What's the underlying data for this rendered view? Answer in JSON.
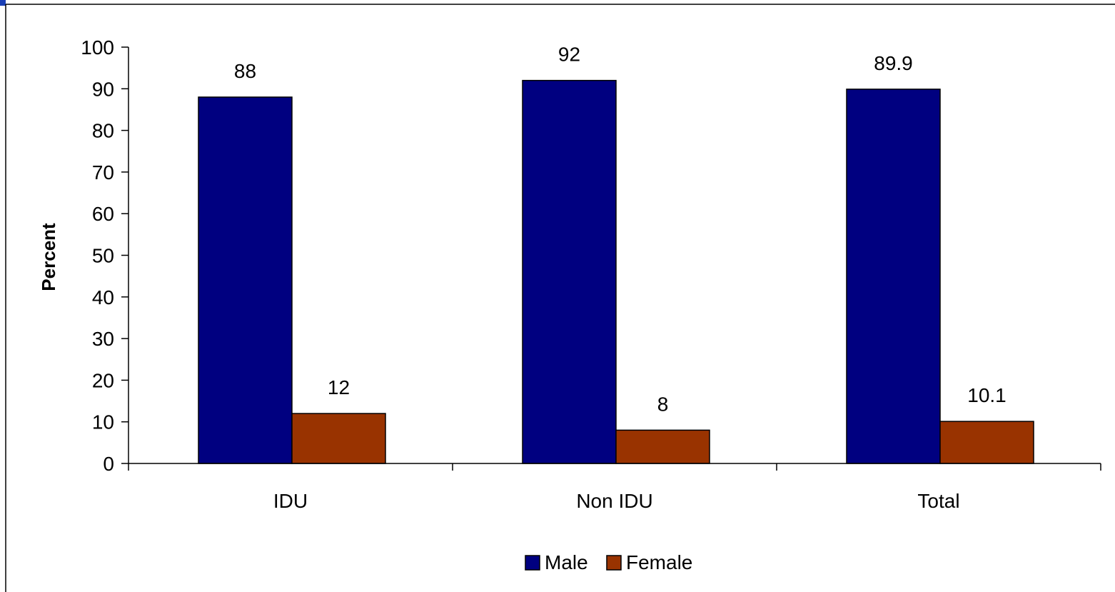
{
  "chart_data": {
    "type": "bar",
    "title": "",
    "xlabel": "",
    "ylabel": "Percent",
    "ylim": [
      0,
      100
    ],
    "y_ticks": [
      0,
      10,
      20,
      30,
      40,
      50,
      60,
      70,
      80,
      90,
      100
    ],
    "categories": [
      "IDU",
      "Non IDU",
      "Total"
    ],
    "series": [
      {
        "name": "Male",
        "values": [
          88,
          92,
          89.9
        ],
        "color": "#000080"
      },
      {
        "name": "Female",
        "values": [
          12,
          8,
          10.1
        ],
        "color": "#993300"
      }
    ],
    "data_labels": [
      [
        "88",
        "92",
        "89.9"
      ],
      [
        "12",
        "8",
        "10.1"
      ]
    ],
    "legend_position": "bottom",
    "grid": false
  }
}
